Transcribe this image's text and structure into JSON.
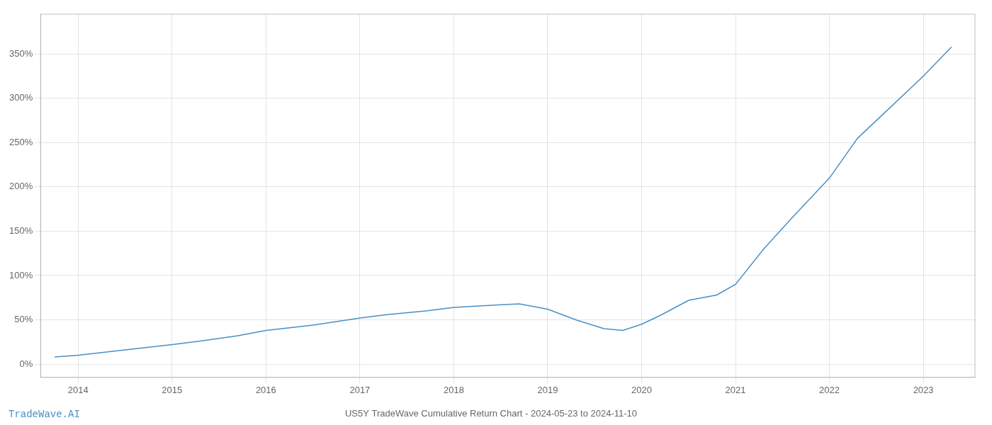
{
  "chart_data": {
    "type": "line",
    "title": "US5Y TradeWave Cumulative Return Chart - 2024-05-23 to 2024-11-10",
    "annotations": [
      "TradeWave.AI"
    ],
    "x": [
      2013.75,
      2014.0,
      2014.5,
      2015.0,
      2015.3,
      2015.7,
      2016.0,
      2016.5,
      2017.0,
      2017.3,
      2017.7,
      2018.0,
      2018.5,
      2018.7,
      2019.0,
      2019.3,
      2019.6,
      2019.8,
      2020.0,
      2020.2,
      2020.5,
      2020.8,
      2021.0,
      2021.3,
      2021.6,
      2022.0,
      2022.3,
      2022.6,
      2023.0,
      2023.3
    ],
    "values": [
      8,
      10,
      16,
      22,
      26,
      32,
      38,
      44,
      52,
      56,
      60,
      64,
      67,
      68,
      62,
      50,
      40,
      38,
      45,
      55,
      72,
      78,
      90,
      130,
      165,
      210,
      255,
      285,
      325,
      358
    ],
    "color": "#4a90c4",
    "marker": "none",
    "xlim": [
      2013.6,
      2023.55
    ],
    "xticks": [
      2014,
      2015,
      2016,
      2017,
      2018,
      2019,
      2020,
      2021,
      2022,
      2023
    ],
    "ylim": [
      -15,
      395
    ],
    "yticks": [
      {
        "value": 0,
        "label": "0%"
      },
      {
        "value": 50,
        "label": "50%"
      },
      {
        "value": 100,
        "label": "100%"
      },
      {
        "value": 150,
        "label": "150%"
      },
      {
        "value": 200,
        "label": "200%"
      },
      {
        "value": 250,
        "label": "250%"
      },
      {
        "value": 300,
        "label": "300%"
      },
      {
        "value": 350,
        "label": "350%"
      }
    ],
    "grid": true
  }
}
